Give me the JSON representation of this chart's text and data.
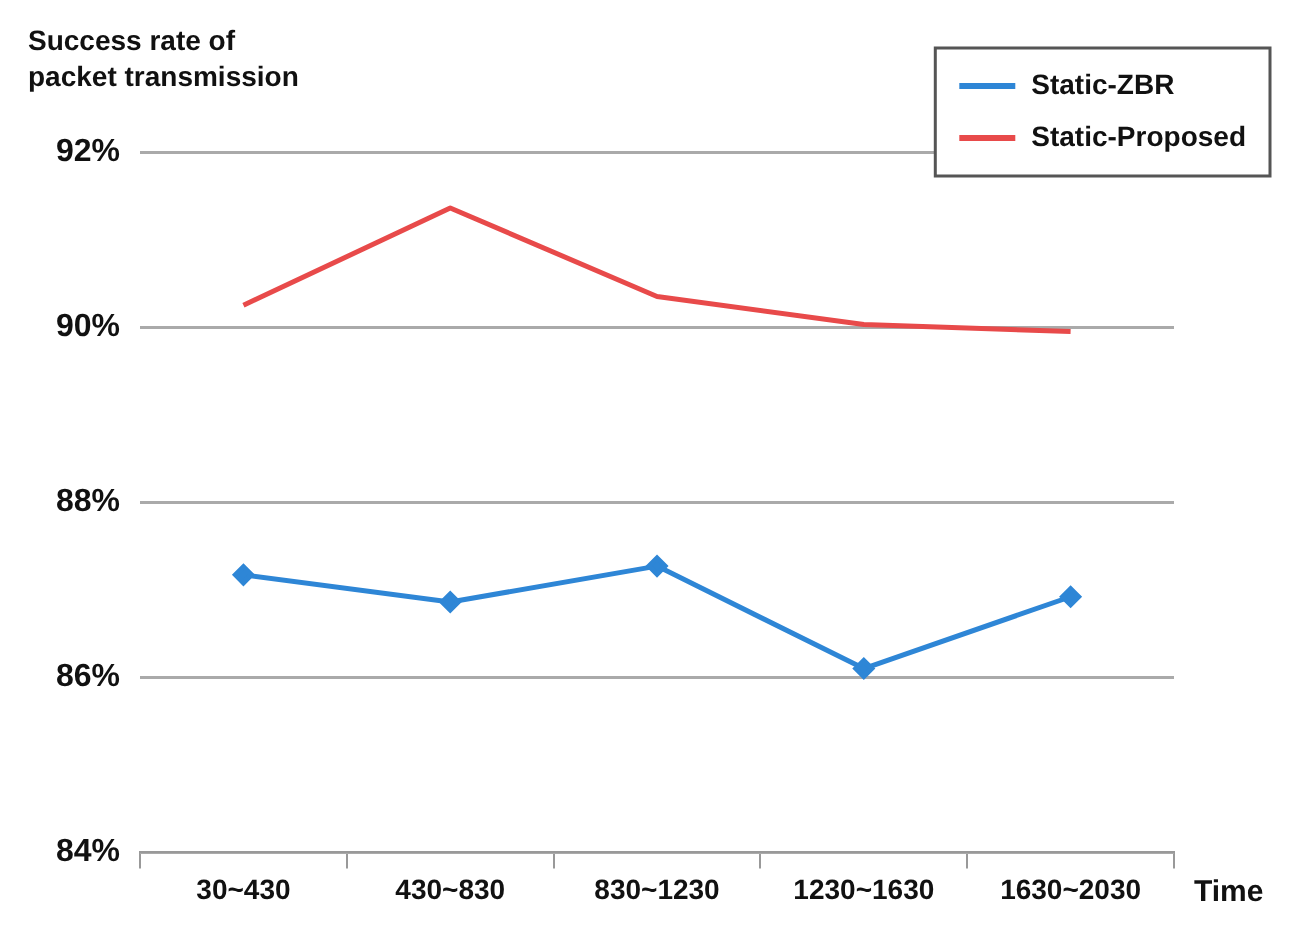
{
  "chart_data": {
    "type": "line",
    "ylabel": "Success rate of\npacket transmission",
    "xlabel": "Time",
    "categories": [
      "30~430",
      "430~830",
      "830~1230",
      "1230~1630",
      "1630~2030"
    ],
    "series": [
      {
        "name": "Static-ZBR",
        "color": "#2e86d6",
        "marker": "diamond",
        "values": [
          87.17,
          86.86,
          87.27,
          86.1,
          86.92
        ]
      },
      {
        "name": "Static-Proposed",
        "color": "#e84a4a",
        "marker": "none",
        "values": [
          90.25,
          91.36,
          90.35,
          90.03,
          89.95
        ]
      }
    ],
    "ylim": [
      84,
      92
    ],
    "yticks": [
      {
        "value": 84,
        "label": "84%"
      },
      {
        "value": 86,
        "label": "86%"
      },
      {
        "value": 88,
        "label": "88%"
      },
      {
        "value": 90,
        "label": "90%"
      },
      {
        "value": 92,
        "label": "92%"
      }
    ],
    "grid": "y",
    "legend": "top right",
    "line_style": "solid"
  }
}
